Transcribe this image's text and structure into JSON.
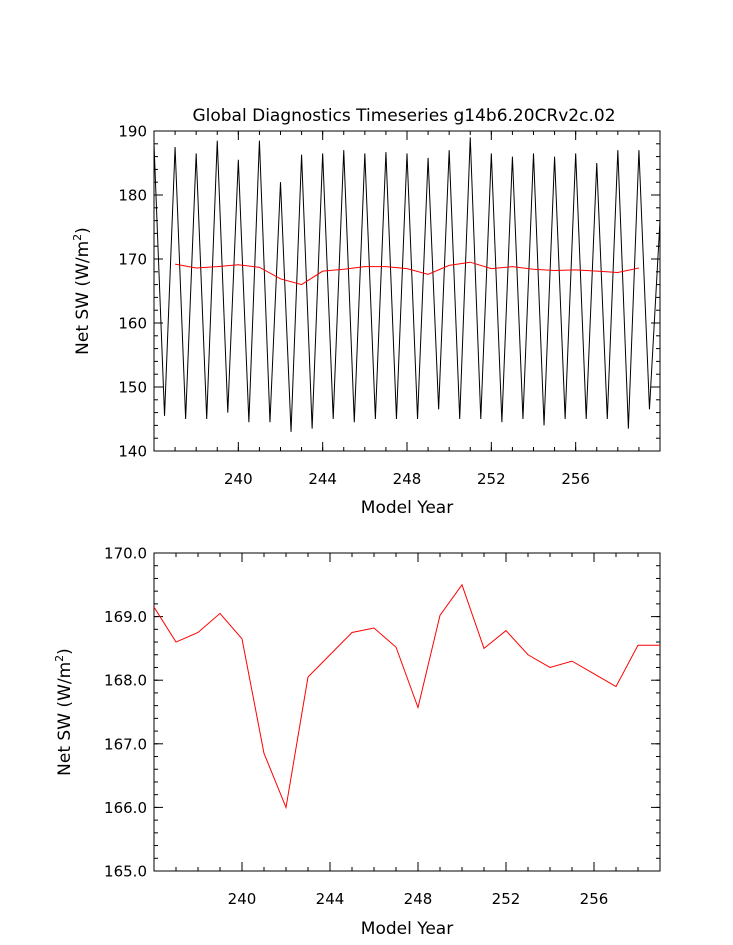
{
  "chart_data": [
    {
      "type": "line",
      "title": "Global Diagnostics Timeseries g14b6.20CRv2c.02",
      "xlabel": "Model Year",
      "ylabel": "Net SW (W/m",
      "ylabel_sup": "2",
      "ylabel_end": ")",
      "xlim": [
        236,
        260
      ],
      "ylim": [
        140,
        190
      ],
      "xticks": [
        240,
        244,
        248,
        252,
        256
      ],
      "yticks": [
        140,
        150,
        160,
        170,
        180,
        190
      ],
      "ytick_labels": [
        "140",
        "150",
        "160",
        "170",
        "180",
        "190"
      ],
      "grid": false,
      "monthly": {
        "color": "#000000",
        "x": [
          236.0,
          236.5,
          237.0,
          237.5,
          238.0,
          238.5,
          239.0,
          239.5,
          240.0,
          240.5,
          241.0,
          241.5,
          242.0,
          242.5,
          243.0,
          243.5,
          244.0,
          244.5,
          245.0,
          245.5,
          246.0,
          246.5,
          247.0,
          247.5,
          248.0,
          248.5,
          249.0,
          249.5,
          250.0,
          250.5,
          251.0,
          251.5,
          252.0,
          252.5,
          253.0,
          253.5,
          254.0,
          254.5,
          255.0,
          255.5,
          256.0,
          256.5,
          257.0,
          257.5,
          258.0,
          258.5,
          259.0,
          259.5,
          260.0
        ],
        "y": [
          188,
          145.5,
          187.5,
          145,
          186.5,
          145,
          188.5,
          146,
          185.5,
          144.5,
          188.5,
          144.5,
          182,
          143,
          186.3,
          143.5,
          186.5,
          145,
          187,
          144.5,
          186.5,
          145,
          186.7,
          145,
          186.5,
          145,
          185.8,
          146.5,
          187,
          145,
          189,
          145,
          186.5,
          144.5,
          186,
          145,
          186.5,
          144,
          186,
          145,
          186.5,
          145,
          185,
          145,
          187,
          143.5,
          187,
          146.5,
          176
        ]
      },
      "annual": {
        "color": "#ff0000",
        "x": [
          237.0,
          238.0,
          239.0,
          240.0,
          241.0,
          242.0,
          243.0,
          244.0,
          245.0,
          246.0,
          247.0,
          248.0,
          249.0,
          250.0,
          251.0,
          252.0,
          253.0,
          254.0,
          255.0,
          256.0,
          257.0,
          258.0,
          259.0
        ],
        "y": [
          169.2,
          168.6,
          168.8,
          169.1,
          168.7,
          166.9,
          166.0,
          168.1,
          168.4,
          168.8,
          168.8,
          168.5,
          167.6,
          169.0,
          169.5,
          168.5,
          168.8,
          168.4,
          168.2,
          168.3,
          168.1,
          167.9,
          168.6
        ]
      }
    },
    {
      "type": "line",
      "xlabel": "Model Year",
      "ylabel": "Net SW (W/m",
      "ylabel_sup": "2",
      "ylabel_end": ")",
      "xlim": [
        236,
        259
      ],
      "ylim": [
        165,
        170
      ],
      "xticks": [
        240,
        244,
        248,
        252,
        256
      ],
      "yticks": [
        165,
        166,
        167,
        168,
        169,
        170
      ],
      "ytick_labels": [
        "165.0",
        "166.0",
        "167.0",
        "168.0",
        "169.0",
        "170.0"
      ],
      "grid": false,
      "series": [
        {
          "color": "#ff0000",
          "x": [
            236.0,
            237.0,
            238.0,
            239.0,
            240.0,
            241.0,
            242.0,
            243.0,
            244.0,
            245.0,
            246.0,
            247.0,
            248.0,
            249.0,
            250.0,
            251.0,
            252.0,
            253.0,
            254.0,
            255.0,
            256.0,
            257.0,
            258.0,
            259.0
          ],
          "y": [
            169.15,
            168.6,
            168.75,
            169.05,
            168.65,
            166.85,
            166.0,
            168.05,
            168.4,
            168.75,
            168.82,
            168.52,
            167.57,
            169.02,
            169.5,
            168.5,
            168.78,
            168.4,
            168.2,
            168.3,
            168.1,
            167.9,
            168.55,
            168.55
          ]
        }
      ]
    }
  ]
}
